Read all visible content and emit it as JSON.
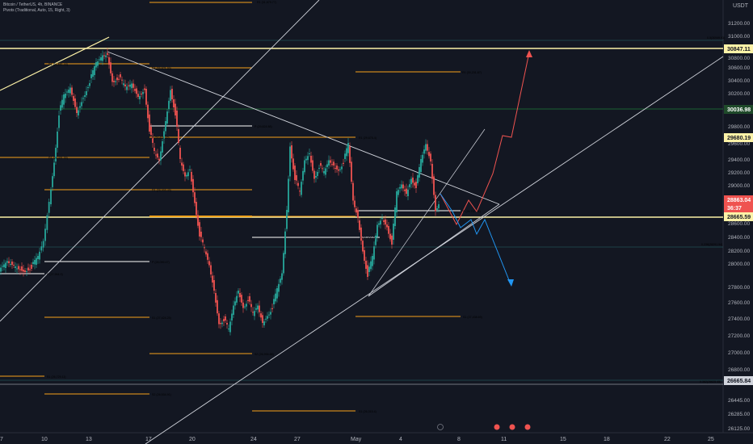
{
  "header": {
    "title_line": "Bitcoin / TetherUS, 4h, BINANCE",
    "indicator_line": "Pivots (Traditional, Auto, 15, Right, 3)"
  },
  "currency": "USDT",
  "price_axis": {
    "ticks": [
      "31200.00",
      "31000.00",
      "30800.00",
      "30600.00",
      "30400.00",
      "30200.00",
      "29800.00",
      "29600.00",
      "29400.00",
      "29200.00",
      "29000.00",
      "28600.00",
      "28400.00",
      "28200.00",
      "28000.00",
      "27800.00",
      "27600.00",
      "27400.00",
      "27200.00",
      "27000.00",
      "26800.00",
      "26445.00",
      "26285.00",
      "26125.00"
    ]
  },
  "price_tags": [
    {
      "text": "30847.11",
      "bg": "#fdf2a7",
      "fg": "#131722"
    },
    {
      "text": "30036.98",
      "bg": "#1f4a2a",
      "fg": "#ffffff"
    },
    {
      "text": "29680.19",
      "bg": "#fdf2a7",
      "fg": "#131722"
    },
    {
      "text": "28863.04",
      "bg": "#ef5350",
      "fg": "#ffffff"
    },
    {
      "text": "36:37",
      "bg": "#ef5350",
      "fg": "#ffffff"
    },
    {
      "text": "28665.59",
      "bg": "#fdf2a7",
      "fg": "#131722"
    },
    {
      "text": "26665.84",
      "bg": "#d1d4dc",
      "fg": "#131722"
    }
  ],
  "date_axis": {
    "ticks": [
      "7",
      "10",
      "13",
      "17",
      "20",
      "24",
      "27",
      "May",
      "4",
      "8",
      "11",
      "15",
      "18",
      "22",
      "25"
    ]
  },
  "level_labels": [
    {
      "id": "r1-top",
      "text": "R1 (31,679.77)",
      "color": "#f7a21b"
    },
    {
      "id": "fib-top",
      "text": "0.5(30949.91)",
      "color": "#b2b5be"
    },
    {
      "id": "r1-apr-mid",
      "text": "R1 (30,571.89)",
      "color": "#f7a21b"
    },
    {
      "id": "r1-left",
      "text": "R1 (29,551.44)",
      "color": "#f7a21b"
    },
    {
      "id": "r1-may",
      "text": "R1 (30,231.87)",
      "color": "#f7a21b"
    },
    {
      "id": "p-white-mid",
      "text": "P (29,824.88)",
      "color": "#ffffff"
    },
    {
      "id": "r1-29675",
      "text": "R1 (29,675.4)",
      "color": "#f7a21b"
    },
    {
      "id": "p-29",
      "text": "P (29,671.82)",
      "color": "#f7a21b"
    },
    {
      "id": "r1-left-2",
      "text": "R1 (29,401.00)",
      "color": "#f7a21b"
    },
    {
      "id": "r1-28999",
      "text": "R1 (28,999.49)",
      "color": "#f7a21b"
    },
    {
      "id": "p-28737",
      "text": "P (28,737.34)",
      "color": "#ffffff"
    },
    {
      "id": "p-28400",
      "text": "P (28,400.2)",
      "color": "#ffffff"
    },
    {
      "id": "fib-28291",
      "text": "0.236(28291.94)",
      "color": "#b2b5be"
    },
    {
      "id": "p-28099",
      "text": "P (28,099.47)",
      "color": "#ffffff"
    },
    {
      "id": "p-27954",
      "text": "P (27,954.9)",
      "color": "#ffffff"
    },
    {
      "id": "s1-27424",
      "text": "S1 (27,424.25)",
      "color": "#f7a21b"
    },
    {
      "id": "s1-27438",
      "text": "S1 (27,438.69)",
      "color": "#f7a21b"
    },
    {
      "id": "s2-26994",
      "text": "S2 (26,994.88)",
      "color": "#f7a21b"
    },
    {
      "id": "s1-26729",
      "text": "S1 (26,729.11)",
      "color": "#f7a21b"
    },
    {
      "id": "fib-26625",
      "text": "0.382(26625.45)",
      "color": "#b2b5be"
    },
    {
      "id": "s2-26534",
      "text": "S2 (26,534.91)",
      "color": "#f7a21b"
    },
    {
      "id": "s1-26315",
      "text": "S1 (26,315.4)",
      "color": "#f7a21b"
    }
  ],
  "colors": {
    "background": "#131722",
    "candle_up": "#26a69a",
    "candle_down": "#ef5350",
    "pivot_orange": "#f7a21b",
    "horizontal_yellow": "#fdf2a7",
    "horizontal_green": "#1f7a3a",
    "forecast_up": "#ef5350",
    "forecast_down": "#2196f3"
  },
  "icons": [
    "event-icon-1",
    "event-icon-2",
    "event-icon-3",
    "event-icon-4"
  ]
}
